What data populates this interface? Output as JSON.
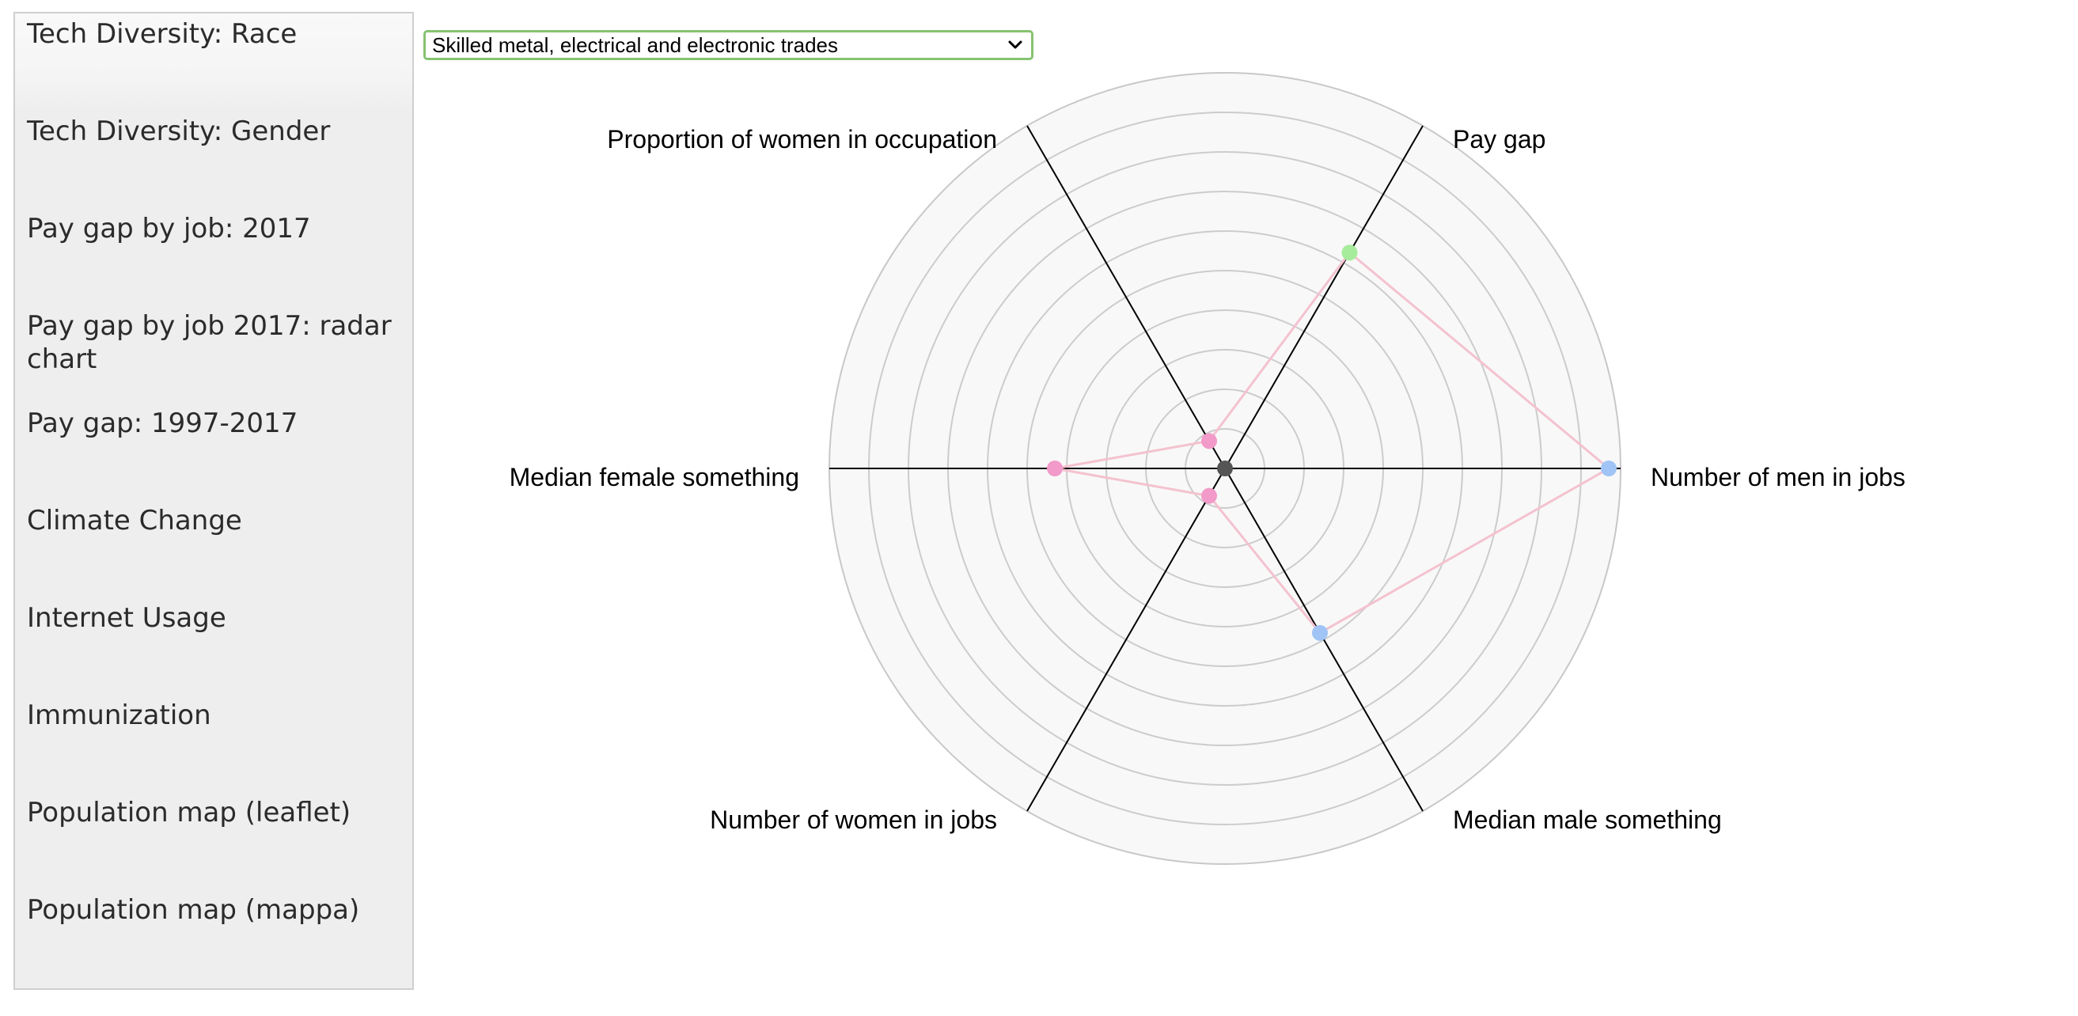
{
  "sidebar": {
    "items": [
      {
        "label": "Tech Diversity: Race"
      },
      {
        "label": "Tech Diversity: Gender"
      },
      {
        "label": "Pay gap by job: 2017"
      },
      {
        "label": "Pay gap by job 2017: radar chart"
      },
      {
        "label": "Pay gap: 1997-2017"
      },
      {
        "label": "Climate Change"
      },
      {
        "label": "Internet Usage"
      },
      {
        "label": "Immunization"
      },
      {
        "label": "Population map (leaflet)"
      },
      {
        "label": "Population map (mappa)"
      }
    ]
  },
  "occupation_select": {
    "selected": "Skilled metal, electrical and electronic trades",
    "border_color": "#86c270",
    "icon": "chevron-down-icon"
  },
  "chart_data": {
    "type": "radar",
    "axes": [
      {
        "label": "Number of men in jobs",
        "value": 0.97,
        "color": "#a0c4f5"
      },
      {
        "label": "Pay gap",
        "value": 0.63,
        "color": "#a6ec9c"
      },
      {
        "label": "Proportion of women in occupation",
        "value": 0.08,
        "color": "#f29ac9"
      },
      {
        "label": "Median female something",
        "value": 0.43,
        "color": "#f29ac9"
      },
      {
        "label": "Number of women in jobs",
        "value": 0.08,
        "color": "#f29ac9"
      },
      {
        "label": "Median male something",
        "value": 0.48,
        "color": "#a0c4f5"
      }
    ],
    "rings": 10,
    "line_color": "#f4c2cf",
    "center_color": "#555555"
  }
}
